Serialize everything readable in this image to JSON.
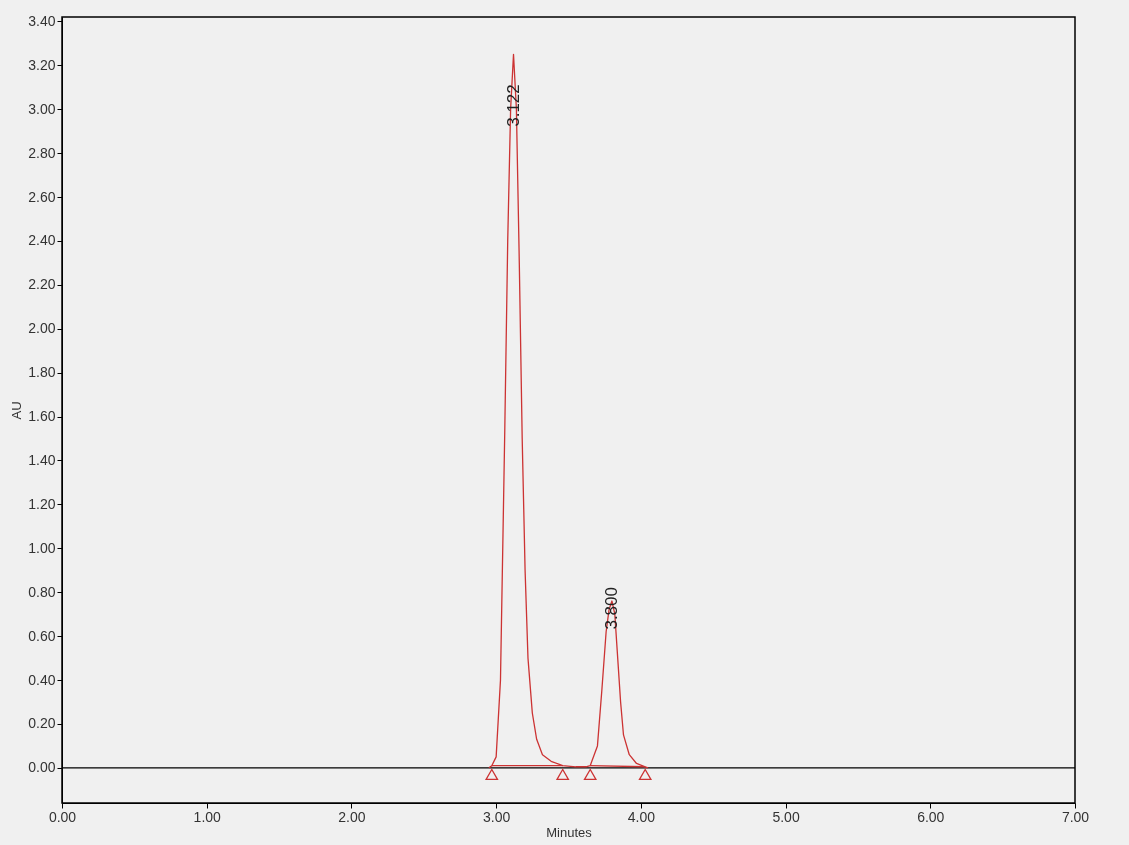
{
  "chart_data": {
    "type": "line",
    "xlabel": "Minutes",
    "ylabel": "AU",
    "xlim": [
      0,
      7
    ],
    "ylim": [
      -0.16,
      3.42
    ],
    "xticks": [
      {
        "value": 0,
        "label": "0.00"
      },
      {
        "value": 1,
        "label": "1.00"
      },
      {
        "value": 2,
        "label": "2.00"
      },
      {
        "value": 3,
        "label": "3.00"
      },
      {
        "value": 4,
        "label": "4.00"
      },
      {
        "value": 5,
        "label": "5.00"
      },
      {
        "value": 6,
        "label": "6.00"
      },
      {
        "value": 7,
        "label": "7.00"
      }
    ],
    "yticks": [
      {
        "value": 0,
        "label": "0.00"
      },
      {
        "value": 0.2,
        "label": "0.20"
      },
      {
        "value": 0.4,
        "label": "0.40"
      },
      {
        "value": 0.6,
        "label": "0.60"
      },
      {
        "value": 0.8,
        "label": "0.80"
      },
      {
        "value": 1,
        "label": "1.00"
      },
      {
        "value": 1.2,
        "label": "1.20"
      },
      {
        "value": 1.4,
        "label": "1.40"
      },
      {
        "value": 1.6,
        "label": "1.60"
      },
      {
        "value": 1.8,
        "label": "1.80"
      },
      {
        "value": 2,
        "label": "2.00"
      },
      {
        "value": 2.2,
        "label": "2.20"
      },
      {
        "value": 2.4,
        "label": "2.40"
      },
      {
        "value": 2.6,
        "label": "2.60"
      },
      {
        "value": 2.8,
        "label": "2.80"
      },
      {
        "value": 3,
        "label": "3.00"
      },
      {
        "value": 3.2,
        "label": "3.20"
      },
      {
        "value": 3.4,
        "label": "3.40"
      }
    ],
    "grid": false,
    "series": [
      {
        "color": "#cc3333",
        "x": [
          2.95,
          2.97,
          3.0,
          3.03,
          3.06,
          3.08,
          3.1,
          3.12,
          3.14,
          3.16,
          3.18,
          3.2,
          3.22,
          3.25,
          3.28,
          3.32,
          3.38,
          3.46,
          3.55,
          3.62,
          3.65,
          3.7,
          3.73,
          3.76,
          3.78,
          3.8,
          3.82,
          3.84,
          3.86,
          3.88,
          3.92,
          3.97,
          4.03,
          4.05
        ],
        "values": [
          0,
          0.01,
          0.05,
          0.4,
          1.55,
          2.4,
          3.0,
          3.25,
          3.0,
          2.3,
          1.5,
          0.9,
          0.5,
          0.25,
          0.13,
          0.06,
          0.03,
          0.01,
          0.005,
          0.005,
          0.01,
          0.1,
          0.35,
          0.62,
          0.72,
          0.76,
          0.7,
          0.5,
          0.3,
          0.15,
          0.06,
          0.02,
          0.005,
          0
        ]
      },
      {
        "color": "#cc3333",
        "x": [
          2.97,
          3.46
        ],
        "values": [
          0.01,
          0.01
        ]
      },
      {
        "color": "#cc3333",
        "x": [
          3.65,
          4.03
        ],
        "values": [
          0.01,
          0.005
        ]
      },
      {
        "type": "scatter",
        "color": "#cc3333",
        "marker": "triangle",
        "x": [
          2.97,
          3.46,
          3.65,
          4.03
        ],
        "values": [
          -0.03,
          -0.03,
          -0.03,
          -0.03
        ]
      }
    ],
    "ref_lines": [
      {
        "axis": "y",
        "value": 0,
        "color": "#000000"
      }
    ],
    "annotations": [
      {
        "text": "3.122",
        "x": 3.122,
        "y": 2.92
      },
      {
        "text": "3.800",
        "x": 3.8,
        "y": 0.63
      }
    ]
  }
}
